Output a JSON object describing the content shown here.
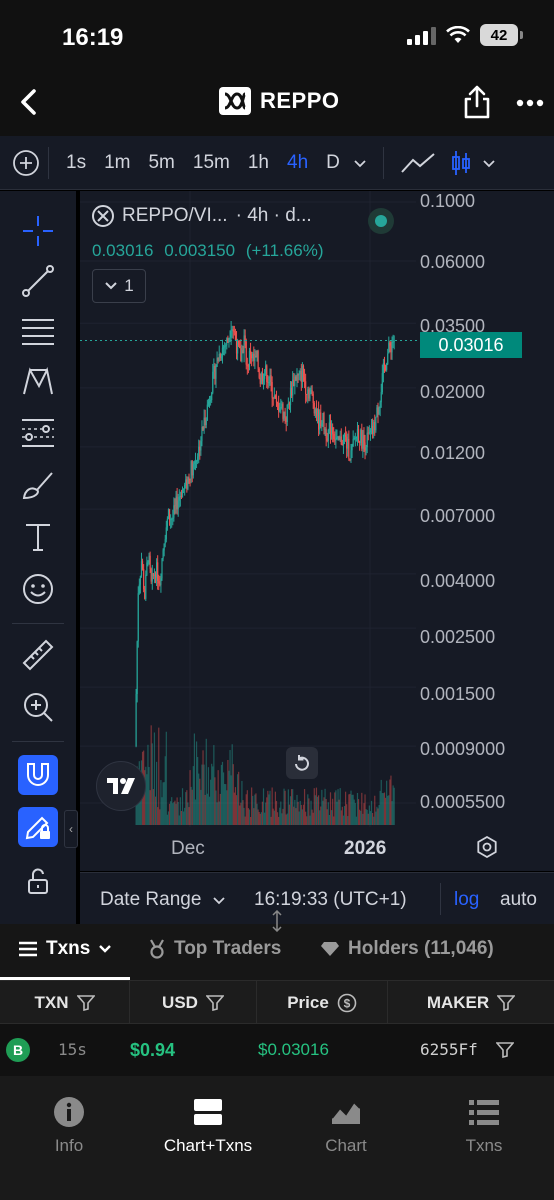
{
  "status_bar": {
    "time": "16:19",
    "battery": "42"
  },
  "header": {
    "title": "REPPO"
  },
  "toolbar": {
    "timeframes": [
      "1s",
      "1m",
      "5m",
      "15m",
      "1h",
      "4h",
      "D"
    ],
    "active_timeframe": "4h"
  },
  "chart": {
    "symbol": "REPPO/VI...",
    "interval_label": "· 4h · d...",
    "ohlc": {
      "close": "0.03016",
      "change": "0.003150",
      "change_pct": "(+11.66%)"
    },
    "indicator_count": "1",
    "last_price": "0.03016",
    "x_labels": [
      "Dec",
      "2026"
    ],
    "accent_up": "#26a69a",
    "accent_down": "#ef5350"
  },
  "chart_data": {
    "type": "candlestick",
    "yscale": "log",
    "y_ticks": [
      "0.1000",
      "0.06000",
      "0.03500",
      "0.02000",
      "0.01200",
      "0.007000",
      "0.004000",
      "0.002500",
      "0.001500",
      "0.0009000",
      "0.0005500"
    ],
    "x_tick_labels": [
      "Dec",
      "2026"
    ],
    "last_price": 0.03016,
    "price_path": [
      [
        0,
        0.0009
      ],
      [
        3,
        0.0035
      ],
      [
        6,
        0.0045
      ],
      [
        9,
        0.0033
      ],
      [
        12,
        0.0048
      ],
      [
        15,
        0.0036
      ],
      [
        19,
        0.0042
      ],
      [
        23,
        0.0038
      ],
      [
        27,
        0.0055
      ],
      [
        31,
        0.0066
      ],
      [
        35,
        0.0065
      ],
      [
        39,
        0.0075
      ],
      [
        43,
        0.0082
      ],
      [
        47,
        0.0085
      ],
      [
        51,
        0.0098
      ],
      [
        55,
        0.0105
      ],
      [
        59,
        0.0118
      ],
      [
        63,
        0.0142
      ],
      [
        67,
        0.017
      ],
      [
        71,
        0.0205
      ],
      [
        75,
        0.0245
      ],
      [
        79,
        0.0275
      ],
      [
        83,
        0.029
      ],
      [
        86,
        0.03
      ],
      [
        89,
        0.0355
      ],
      [
        92,
        0.032
      ],
      [
        95,
        0.028
      ],
      [
        98,
        0.026
      ],
      [
        101,
        0.0305
      ],
      [
        104,
        0.024
      ],
      [
        107,
        0.0275
      ],
      [
        110,
        0.025
      ],
      [
        113,
        0.0255
      ],
      [
        116,
        0.0215
      ],
      [
        119,
        0.0232
      ],
      [
        122,
        0.0226
      ],
      [
        125,
        0.021
      ],
      [
        128,
        0.019
      ],
      [
        131,
        0.0168
      ],
      [
        134,
        0.0176
      ],
      [
        137,
        0.0163
      ],
      [
        140,
        0.0156
      ],
      [
        143,
        0.0182
      ],
      [
        146,
        0.021
      ],
      [
        149,
        0.0222
      ],
      [
        152,
        0.0215
      ],
      [
        155,
        0.023
      ],
      [
        158,
        0.0205
      ],
      [
        161,
        0.0195
      ],
      [
        164,
        0.0185
      ],
      [
        167,
        0.0168
      ],
      [
        170,
        0.015
      ],
      [
        173,
        0.0155
      ],
      [
        176,
        0.014
      ],
      [
        179,
        0.0135
      ],
      [
        182,
        0.0145
      ],
      [
        185,
        0.0132
      ],
      [
        188,
        0.0122
      ],
      [
        191,
        0.0128
      ],
      [
        194,
        0.013
      ],
      [
        197,
        0.012
      ],
      [
        200,
        0.0112
      ],
      [
        203,
        0.0125
      ],
      [
        206,
        0.0138
      ],
      [
        209,
        0.013
      ],
      [
        212,
        0.0125
      ],
      [
        215,
        0.0128
      ],
      [
        218,
        0.0132
      ],
      [
        221,
        0.014
      ],
      [
        224,
        0.016
      ],
      [
        227,
        0.019
      ],
      [
        230,
        0.023
      ],
      [
        233,
        0.0262
      ],
      [
        236,
        0.0285
      ],
      [
        239,
        0.0302
      ]
    ]
  },
  "range_bar": {
    "date_range": "Date Range",
    "clock": "16:19:33 (UTC+1)",
    "log": "log",
    "auto": "auto"
  },
  "tabs": [
    {
      "label": "Txns"
    },
    {
      "label": "Top Traders"
    },
    {
      "label": "Holders (11,046)"
    }
  ],
  "table": {
    "columns": [
      "TXN",
      "USD",
      "Price",
      "MAKER"
    ],
    "rows": [
      {
        "type": "B",
        "age": "15s",
        "usd": "$0.94",
        "price": "$0.03016",
        "maker": "6255Ff"
      }
    ]
  },
  "bottom_nav": [
    {
      "label": "Info",
      "icon": "info-icon"
    },
    {
      "label": "Chart+Txns",
      "icon": "split-view-icon"
    },
    {
      "label": "Chart",
      "icon": "area-chart-icon"
    },
    {
      "label": "Txns",
      "icon": "list-icon"
    }
  ]
}
